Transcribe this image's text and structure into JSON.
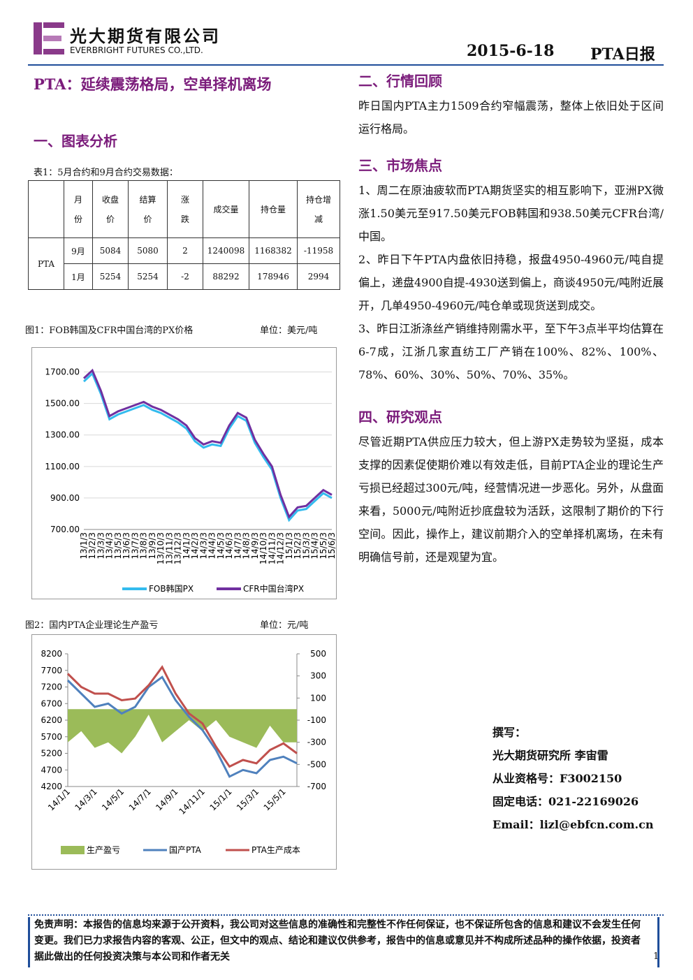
{
  "header": {
    "company_cn": "光大期货有限公司",
    "company_en": "EVERBRIGHT FUTURES CO.,LTD.",
    "date": "2015-6-18",
    "report": "PTA日报"
  },
  "left": {
    "title": "PTA：延续震荡格局，空单择机离场",
    "section1": "一、图表分析",
    "table": {
      "caption": "表1：5月合约和9月合约交易数据：",
      "headers": [
        "月份",
        "收盘价",
        "结算价",
        "涨跌",
        "成交量",
        "持仓量",
        "持仓增减"
      ],
      "product": "PTA",
      "rows": [
        [
          "9月",
          "5084",
          "5080",
          "2",
          "1240098",
          "1168382",
          "-11958"
        ],
        [
          "1月",
          "5254",
          "5254",
          "-2",
          "88292",
          "178946",
          "2994"
        ]
      ]
    }
  },
  "chart_data": [
    {
      "type": "line",
      "title": "图1：FOB韩国及CFR中国台湾的PX价格",
      "unit": "单位：美元/吨",
      "categories": [
        "13/1/3",
        "13/2/3",
        "13/3/3",
        "13/4/3",
        "13/5/3",
        "13/6/3",
        "13/7/3",
        "13/8/3",
        "13/9/3",
        "13/10/3",
        "13/11/3",
        "13/12/3",
        "14/1/3",
        "14/2/3",
        "14/3/3",
        "14/4/3",
        "14/5/3",
        "14/6/3",
        "14/7/3",
        "14/8/3",
        "14/9/3",
        "14/10/3",
        "14/11/3",
        "14/12/3",
        "15/1/3",
        "15/2/3",
        "15/3/3",
        "15/4/3",
        "15/5/3",
        "15/6/3"
      ],
      "series": [
        {
          "name": "FOB韩国PX",
          "color": "#33bbee",
          "values": [
            1640,
            1690,
            1560,
            1400,
            1430,
            1450,
            1470,
            1490,
            1460,
            1440,
            1410,
            1380,
            1340,
            1260,
            1220,
            1240,
            1230,
            1340,
            1420,
            1390,
            1250,
            1160,
            1080,
            900,
            760,
            820,
            830,
            880,
            930,
            900
          ]
        },
        {
          "name": "CFR中国台湾PX",
          "color": "#7030a0",
          "values": [
            1660,
            1710,
            1580,
            1420,
            1450,
            1470,
            1490,
            1510,
            1480,
            1460,
            1430,
            1400,
            1360,
            1280,
            1240,
            1260,
            1250,
            1360,
            1440,
            1410,
            1270,
            1180,
            1100,
            920,
            780,
            840,
            850,
            900,
            950,
            920
          ]
        }
      ],
      "ylim": [
        700,
        1800
      ],
      "yticks": [
        {
          "value": 700,
          "label": "700.00"
        },
        {
          "value": 900,
          "label": "900.00"
        },
        {
          "value": 1100,
          "label": "1100.00"
        },
        {
          "value": 1300,
          "label": "1300.00"
        },
        {
          "value": 1500,
          "label": "1500.00"
        },
        {
          "value": 1700,
          "label": "1700.00"
        }
      ]
    },
    {
      "type": "combo",
      "title": "图2：国内PTA企业理论生产盈亏",
      "unit": "单位：元/吨",
      "categories": [
        "14/1/1",
        null,
        "14/3/1",
        null,
        "14/5/1",
        null,
        "14/7/1",
        null,
        "14/9/1",
        null,
        "14/11/1",
        null,
        "15/1/1",
        null,
        "15/3/1",
        null,
        "15/5/1",
        null
      ],
      "series": [
        {
          "name": "生产盈亏",
          "type": "area",
          "axis": "y2",
          "color": "#9bbb59",
          "values": [
            -300,
            -200,
            -350,
            -300,
            -400,
            -250,
            -50,
            -300,
            -200,
            -100,
            -200,
            -100,
            -250,
            -300,
            -350,
            -150,
            -300,
            -300
          ]
        },
        {
          "name": "国产PTA",
          "type": "line",
          "color": "#4f81bd",
          "values": [
            7400,
            7000,
            6600,
            6700,
            6400,
            6600,
            7200,
            7500,
            6800,
            6300,
            5900,
            5300,
            4500,
            4700,
            4600,
            5000,
            5100,
            4900
          ]
        },
        {
          "name": "PTA生产成本",
          "type": "line",
          "color": "#c0504d",
          "values": [
            7600,
            7200,
            7000,
            7000,
            6800,
            6850,
            7250,
            7800,
            7000,
            6400,
            6100,
            5400,
            4800,
            5000,
            4900,
            5300,
            5500,
            5200
          ]
        }
      ],
      "ylim": [
        4200,
        8200
      ],
      "yticks": [
        4200,
        4700,
        5200,
        5700,
        6200,
        6700,
        7200,
        7700,
        8200
      ],
      "y2lim": [
        -700,
        500
      ],
      "y2ticks": [
        -700,
        -500,
        -300,
        -100,
        100,
        300,
        500
      ]
    }
  ],
  "right": {
    "section2": "二、行情回顾",
    "p2": "昨日国内PTA主力1509合约窄幅震荡，整体上依旧处于区间运行格局。",
    "section3": "三、市场焦点",
    "p3": [
      "1、周二在原油疲软而PTA期货坚实的相互影响下，亚洲PX微涨1.50美元至917.50美元FOB韩国和938.50美元CFR台湾/中国。",
      "2、昨日下午PTA内盘依旧持稳，报盘4950-4960元/吨自提偏上，递盘4900自提-4930送到偏上，商谈4950元/吨附近展开，几单4950-4960元/吨仓单或现货送到成交。",
      "3、昨日江浙涤丝产销维持刚需水平，至下午3点半平均估算在6-7成，江浙几家直纺工厂产销在100%、82%、100%、78%、60%、30%、50%、70%、35%。"
    ],
    "section4": "四、研究观点",
    "p4": "尽管近期PTA供应压力较大，但上游PX走势较为坚挺，成本支撑的因素促使期价难以有效走低，目前PTA企业的理论生产亏损已经超过300元/吨，经营情况进一步恶化。另外，从盘面来看，5000元/吨附近抄底盘较为活跃，这限制了期价的下行空间。因此，操作上，建议前期介入的空单择机离场，在未有明确信号前，还是观望为宜。",
    "author": [
      "撰写：",
      "光大期货研究所 李宙雷",
      "从业资格号：F3002150",
      "固定电话：021-22169026",
      "Email：lizl@ebfcn.com.cn"
    ]
  },
  "footer": {
    "disclaimer": "免责声明：本报告的信息均来源于公开资料，我公司对这些信息的准确性和完整性不作任何保证，也不保证所包含的信息和建议不会发生任何变更。我们已力求报告内容的客观、公正，但文中的观点、结论和建议仅供参考，报告中的信息或意见并不构成所述品种的操作依据，投资者据此做出的任何投资决策与本公司和作者无关",
    "page": "1"
  }
}
